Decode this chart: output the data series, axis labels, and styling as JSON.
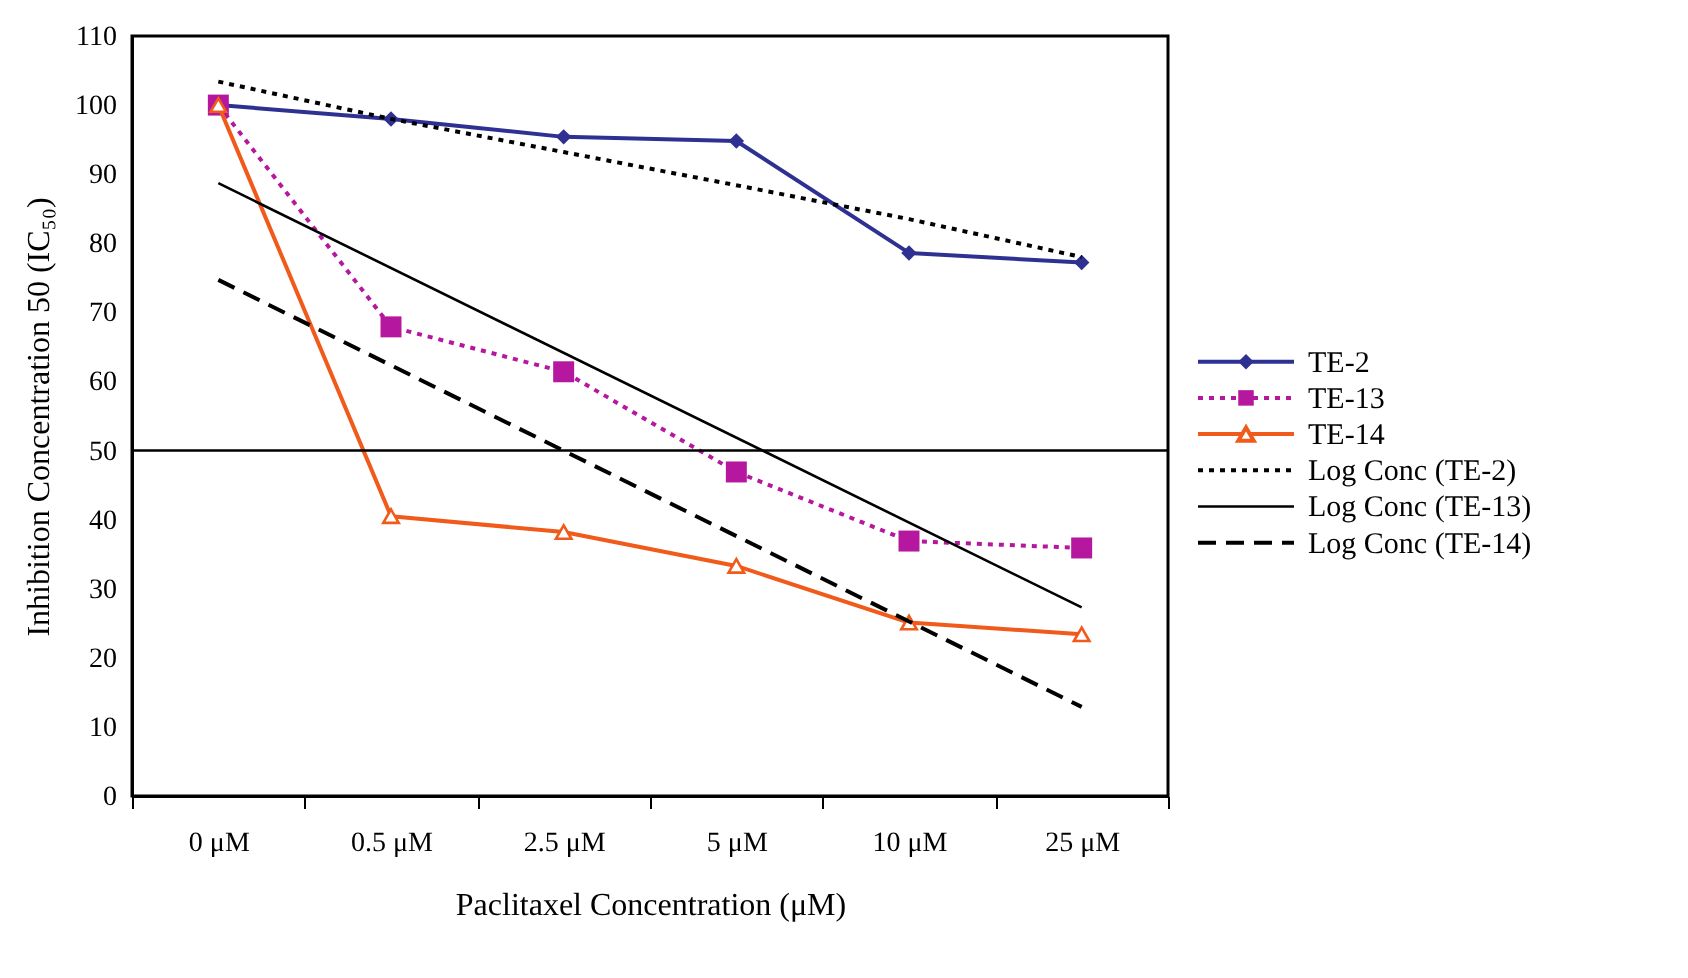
{
  "chart_data": {
    "type": "line",
    "xlabel": "Paclitaxel Concentration (μM)",
    "ylabel": "Inhibition Concentration 50 (IC₅₀)",
    "categories": [
      "0 μM",
      "0.5 μM",
      "2.5 μM",
      "5 μM",
      "10 μM",
      "25 μM"
    ],
    "ylim": [
      0,
      110
    ],
    "yticks": [
      0,
      10,
      20,
      30,
      40,
      50,
      60,
      70,
      80,
      90,
      100,
      110
    ],
    "grid": false,
    "legend": "right",
    "ref_lines": [
      {
        "axis": "y",
        "value": 50,
        "color": "#000000"
      }
    ],
    "series": [
      {
        "name": "TE-2",
        "color": "#2e3192",
        "marker": "diamond",
        "line_style": "solid",
        "values": [
          100,
          98,
          95.4,
          94.8,
          78.6,
          77.2
        ]
      },
      {
        "name": "TE-13",
        "color": "#b5179e",
        "marker": "square",
        "line_style": "dotted",
        "values": [
          100,
          67.9,
          61.4,
          46.9,
          36.9,
          35.9
        ]
      },
      {
        "name": "TE-14",
        "color": "#f05a1a",
        "marker": "triangle",
        "line_style": "solid",
        "values": [
          100,
          40.5,
          38.2,
          33.3,
          25.1,
          23.4
        ]
      },
      {
        "name": "Log Conc (TE-2)",
        "color": "#000000",
        "marker": "none",
        "line_style": "dotted",
        "values": [
          103.4,
          98,
          93.2,
          88.4,
          83.5,
          78
        ]
      },
      {
        "name": "Log Conc (TE-13)",
        "color": "#000000",
        "marker": "none",
        "line_style": "solid",
        "x": [
          "0 μM",
          "25 μM"
        ],
        "values": [
          88.7,
          27.3
        ]
      },
      {
        "name": "Log Conc (TE-14)",
        "color": "#000000",
        "marker": "none",
        "line_style": "dashed",
        "x": [
          "0 μM",
          "25 μM"
        ],
        "values": [
          74.7,
          12.9
        ]
      }
    ]
  }
}
